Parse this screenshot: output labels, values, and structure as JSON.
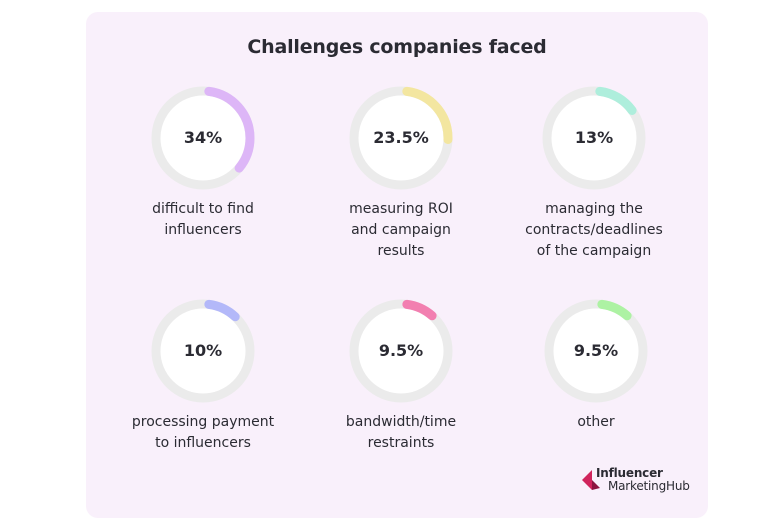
{
  "title": "Challenges companies faced",
  "colors": {
    "card_background": "#f9f0fb",
    "track": "#ebebeb",
    "circle_fill": "#ffffff",
    "logo_accent": "#d0245c"
  },
  "chart_data": {
    "type": "pie",
    "title": "Challenges companies faced",
    "unit": "%",
    "items": [
      {
        "label": "difficult to find\ninfluencers",
        "value": 34,
        "display": "34%",
        "color": "#ddb6f7"
      },
      {
        "label": "measuring ROI\nand campaign\nresults",
        "value": 23.5,
        "display": "23.5%",
        "color": "#f3e6a0"
      },
      {
        "label": "managing the\ncontracts/deadlines\nof the campaign",
        "value": 13,
        "display": "13%",
        "color": "#aeeedc"
      },
      {
        "label": "processing payment\nto influencers",
        "value": 10,
        "display": "10%",
        "color": "#b3b8f9"
      },
      {
        "label": "bandwidth/time\nrestraints",
        "value": 9.5,
        "display": "9.5%",
        "color": "#f27fb0"
      },
      {
        "label": "other",
        "value": 9.5,
        "display": "9.5%",
        "color": "#adf2a3"
      }
    ]
  },
  "logo": {
    "line1": "Influencer",
    "line2": "MarketingHub",
    "icon": "influencer-marketing-hub-logo-icon"
  }
}
